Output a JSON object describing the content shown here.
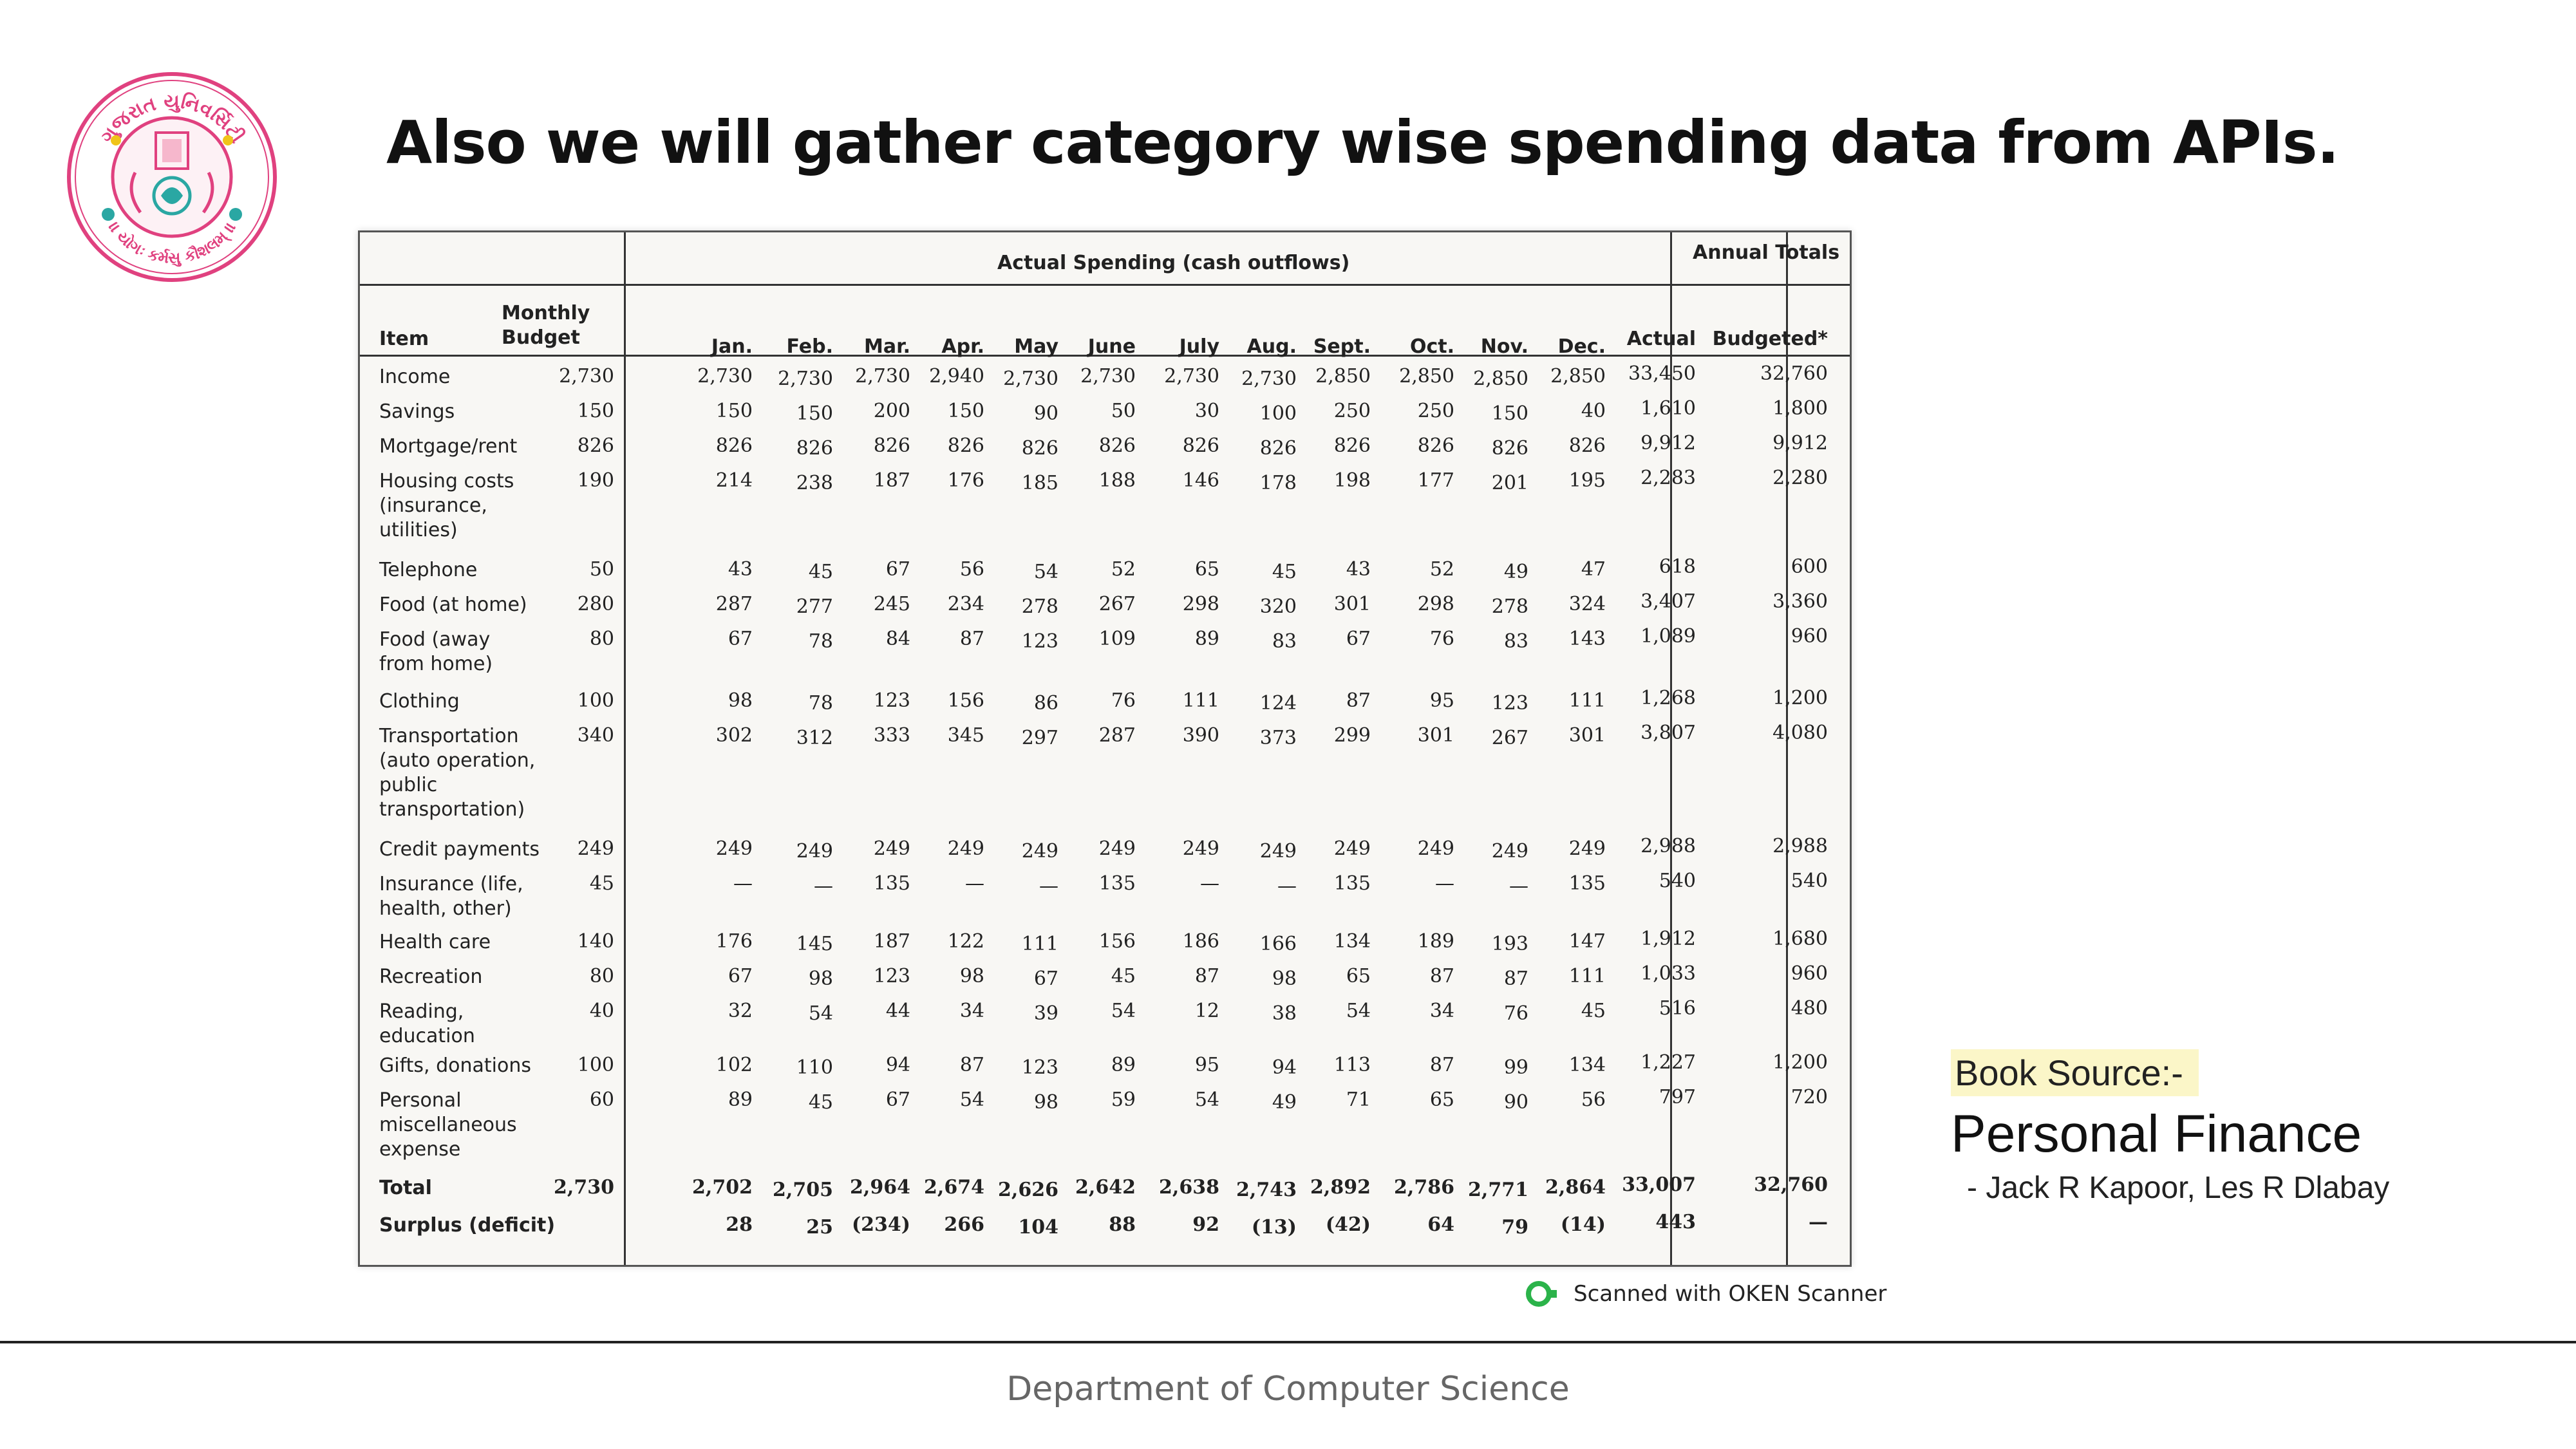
{
  "title": "Also we will gather category wise spending data from APIs.",
  "logo": {
    "text_top": "ગુજરાત યુનિવર્સિટી",
    "text_bottom": "।। યોગઃ કર્મસુ કૌશલમ્ ।।",
    "ring_color": "#e0417f",
    "accent_color": "#2aa7a3"
  },
  "table": {
    "header": {
      "actual_spending": "Actual Spending (cash outflows)",
      "annual_totals": "Annual Totals",
      "item": "Item",
      "monthly_budget": [
        "Monthly",
        "Budget"
      ],
      "months": [
        "Jan.",
        "Feb.",
        "Mar.",
        "Apr.",
        "May",
        "June",
        "July",
        "Aug.",
        "Sept.",
        "Oct.",
        "Nov.",
        "Dec."
      ],
      "actual": "Actual",
      "budgeted": "Budgeted*"
    },
    "rows": [
      {
        "item": [
          "Income"
        ],
        "budget": "2,730",
        "values": [
          "2,730",
          "2,730",
          "2,730",
          "2,940",
          "2,730",
          "2,730",
          "2,730",
          "2,730",
          "2,850",
          "2,850",
          "2,850",
          "2,850"
        ],
        "actual": "33,450",
        "budgeted": "32,760"
      },
      {
        "item": [
          "Savings"
        ],
        "budget": "150",
        "values": [
          "150",
          "150",
          "200",
          "150",
          "90",
          "50",
          "30",
          "100",
          "250",
          "250",
          "150",
          "40"
        ],
        "actual": "1,610",
        "budgeted": "1,800"
      },
      {
        "item": [
          "Mortgage/rent"
        ],
        "budget": "826",
        "values": [
          "826",
          "826",
          "826",
          "826",
          "826",
          "826",
          "826",
          "826",
          "826",
          "826",
          "826",
          "826"
        ],
        "actual": "9,912",
        "budgeted": "9,912"
      },
      {
        "item": [
          "Housing costs",
          "(insurance,",
          "utilities)"
        ],
        "budget": "190",
        "values": [
          "214",
          "238",
          "187",
          "176",
          "185",
          "188",
          "146",
          "178",
          "198",
          "177",
          "201",
          "195"
        ],
        "actual": "2,283",
        "budgeted": "2,280"
      },
      {
        "item": [
          "Telephone"
        ],
        "budget": "50",
        "values": [
          "43",
          "45",
          "67",
          "56",
          "54",
          "52",
          "65",
          "45",
          "43",
          "52",
          "49",
          "47"
        ],
        "actual": "618",
        "budgeted": "600"
      },
      {
        "item": [
          "Food (at home)"
        ],
        "budget": "280",
        "values": [
          "287",
          "277",
          "245",
          "234",
          "278",
          "267",
          "298",
          "320",
          "301",
          "298",
          "278",
          "324"
        ],
        "actual": "3,407",
        "budgeted": "3,360"
      },
      {
        "item": [
          "Food (away",
          "from home)"
        ],
        "budget": "80",
        "values": [
          "67",
          "78",
          "84",
          "87",
          "123",
          "109",
          "89",
          "83",
          "67",
          "76",
          "83",
          "143"
        ],
        "actual": "1,089",
        "budgeted": "960"
      },
      {
        "item": [
          "Clothing"
        ],
        "budget": "100",
        "values": [
          "98",
          "78",
          "123",
          "156",
          "86",
          "76",
          "111",
          "124",
          "87",
          "95",
          "123",
          "111"
        ],
        "actual": "1,268",
        "budgeted": "1,200"
      },
      {
        "item": [
          "Transportation",
          "(auto operation,",
          "public",
          "transportation)"
        ],
        "budget": "340",
        "values": [
          "302",
          "312",
          "333",
          "345",
          "297",
          "287",
          "390",
          "373",
          "299",
          "301",
          "267",
          "301"
        ],
        "actual": "3,807",
        "budgeted": "4,080"
      },
      {
        "item": [
          "Credit payments"
        ],
        "budget": "249",
        "values": [
          "249",
          "249",
          "249",
          "249",
          "249",
          "249",
          "249",
          "249",
          "249",
          "249",
          "249",
          "249"
        ],
        "actual": "2,988",
        "budgeted": "2,988"
      },
      {
        "item": [
          "Insurance (life,",
          "health, other)"
        ],
        "budget": "45",
        "values": [
          "—",
          "—",
          "135",
          "—",
          "—",
          "135",
          "—",
          "—",
          "135",
          "—",
          "—",
          "135"
        ],
        "actual": "540",
        "budgeted": "540"
      },
      {
        "item": [
          "Health care"
        ],
        "budget": "140",
        "values": [
          "176",
          "145",
          "187",
          "122",
          "111",
          "156",
          "186",
          "166",
          "134",
          "189",
          "193",
          "147"
        ],
        "actual": "1,912",
        "budgeted": "1,680"
      },
      {
        "item": [
          "Recreation"
        ],
        "budget": "80",
        "values": [
          "67",
          "98",
          "123",
          "98",
          "67",
          "45",
          "87",
          "98",
          "65",
          "87",
          "87",
          "111"
        ],
        "actual": "1,033",
        "budgeted": "960"
      },
      {
        "item": [
          "Reading,",
          "education"
        ],
        "budget": "40",
        "values": [
          "32",
          "54",
          "44",
          "34",
          "39",
          "54",
          "12",
          "38",
          "54",
          "34",
          "76",
          "45"
        ],
        "actual": "516",
        "budgeted": "480"
      },
      {
        "item": [
          "Gifts, donations"
        ],
        "budget": "100",
        "values": [
          "102",
          "110",
          "94",
          "87",
          "123",
          "89",
          "95",
          "94",
          "113",
          "87",
          "99",
          "134"
        ],
        "actual": "1,227",
        "budgeted": "1,200"
      },
      {
        "item": [
          "Personal",
          "miscellaneous",
          "expense"
        ],
        "budget": "60",
        "values": [
          "89",
          "45",
          "67",
          "54",
          "98",
          "59",
          "54",
          "49",
          "71",
          "65",
          "90",
          "56"
        ],
        "actual": "797",
        "budgeted": "720"
      },
      {
        "item": [
          "Total"
        ],
        "budget": "2,730",
        "values": [
          "2,702",
          "2,705",
          "2,964",
          "2,674",
          "2,626",
          "2,642",
          "2,638",
          "2,743",
          "2,892",
          "2,786",
          "2,771",
          "2,864"
        ],
        "actual": "33,007",
        "budgeted": "32,760",
        "bold": true
      },
      {
        "item": [
          "Surplus (deficit)"
        ],
        "budget": "",
        "values": [
          "28",
          "25",
          "(234)",
          "266",
          "104",
          "88",
          "92",
          "(13)",
          "(42)",
          "64",
          "79",
          "(14)"
        ],
        "actual": "443",
        "budgeted": "—",
        "bold": true
      }
    ]
  },
  "book": {
    "label": "Book Source:-",
    "title": "Personal Finance",
    "authors": "- Jack R Kapoor, Les R Dlabay"
  },
  "scanner": {
    "text": "Scanned with OKEN Scanner",
    "icon_color": "#2bb34a"
  },
  "footer": "Department of Computer Science"
}
